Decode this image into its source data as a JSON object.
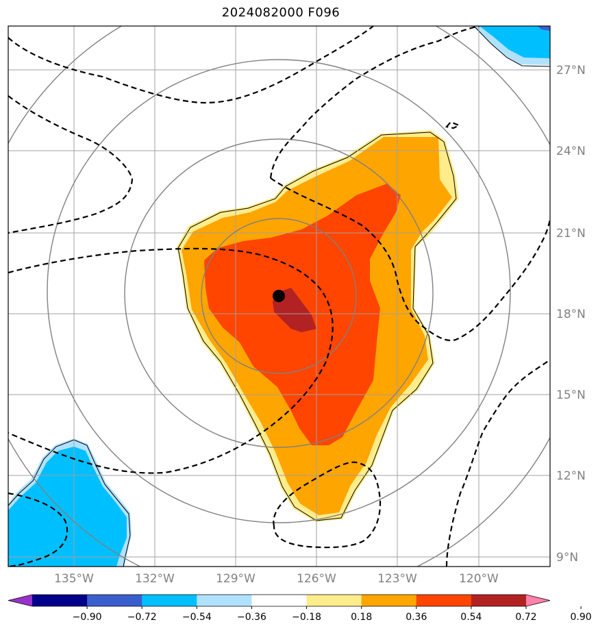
{
  "title": "2024082000 F096",
  "map": {
    "lat_labels": [
      "27°N",
      "24°N",
      "21°N",
      "18°N",
      "15°N",
      "12°N",
      "9°N"
    ],
    "lon_labels": [
      "135°W",
      "132°W",
      "129°W",
      "126°W",
      "123°W",
      "120°W"
    ],
    "center_marker": {
      "lon": -127.4,
      "lat": 18.6
    },
    "range_rings": 4,
    "gridline_color": "#a0a0a0",
    "ring_color": "#808080",
    "contour_style": "dashed-black"
  },
  "colorbar": {
    "tick_labels": [
      "−0.90",
      "−0.72",
      "−0.54",
      "−0.36",
      "−0.18",
      "0.18",
      "0.36",
      "0.54",
      "0.72",
      "0.90"
    ],
    "colors": [
      "#9932CC",
      "#00008B",
      "#3A5FCD",
      "#00BFFF",
      "#B0E2FF",
      "#FFFFFF",
      "#FFEC8B",
      "#FFA500",
      "#FF4500",
      "#B22222",
      "#FF82AB"
    ],
    "extend": "both"
  }
}
